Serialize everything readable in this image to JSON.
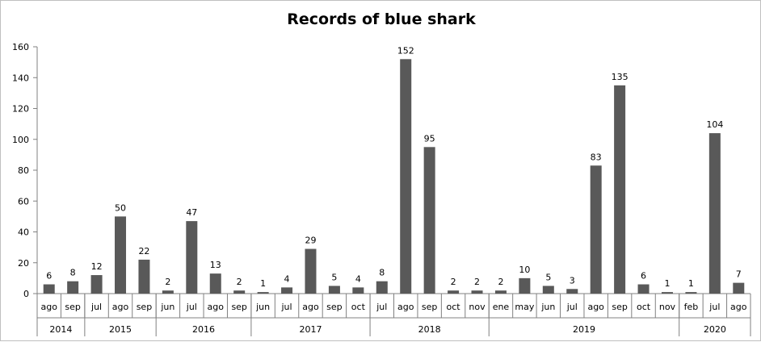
{
  "chart_data": {
    "type": "bar",
    "title": "Records of blue shark",
    "xlabel": "",
    "ylabel": "",
    "ylim": [
      0,
      160
    ],
    "yticks": [
      0,
      20,
      40,
      60,
      80,
      100,
      120,
      140,
      160
    ],
    "grid": false,
    "legend": "none",
    "bar_color": "#595959",
    "categories": [
      "ago",
      "sep",
      "jul",
      "ago",
      "sep",
      "jun",
      "jul",
      "ago",
      "sep",
      "jun",
      "jul",
      "ago",
      "sep",
      "oct",
      "jul",
      "ago",
      "sep",
      "oct",
      "nov",
      "ene",
      "may",
      "jun",
      "jul",
      "ago",
      "sep",
      "oct",
      "nov",
      "feb",
      "jul",
      "ago"
    ],
    "values": [
      6,
      8,
      12,
      50,
      22,
      2,
      47,
      13,
      2,
      1,
      4,
      29,
      5,
      4,
      8,
      152,
      95,
      2,
      2,
      2,
      10,
      5,
      3,
      83,
      135,
      6,
      1,
      1,
      104,
      7
    ],
    "groups": [
      {
        "label": "2014",
        "count": 2
      },
      {
        "label": "2015",
        "count": 3
      },
      {
        "label": "2016",
        "count": 4
      },
      {
        "label": "2017",
        "count": 5
      },
      {
        "label": "2018",
        "count": 5
      },
      {
        "label": "2019",
        "count": 8
      },
      {
        "label": "2020",
        "count": 3
      }
    ]
  }
}
